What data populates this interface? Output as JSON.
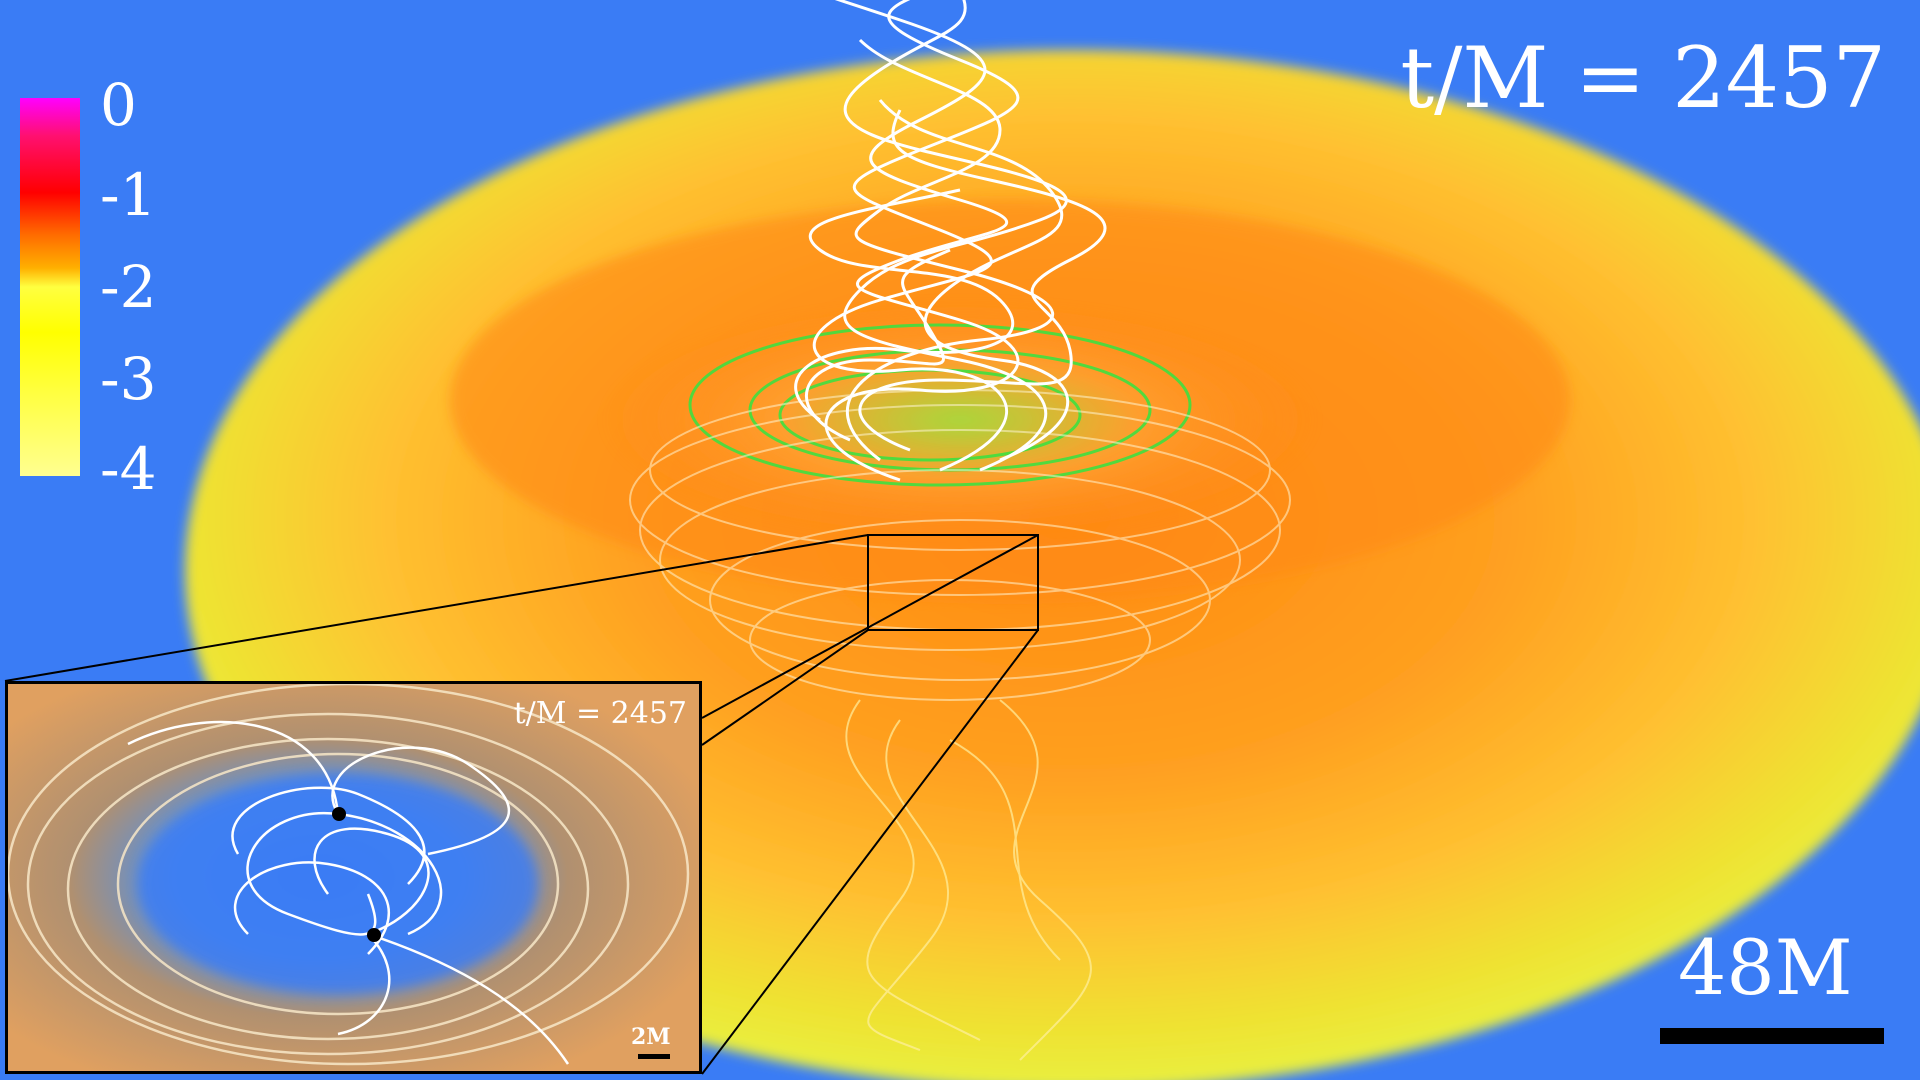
{
  "time_label": "t/M = 2457",
  "colorbar": {
    "ticks": [
      "0",
      "-1",
      "-2",
      "-3",
      "-4"
    ]
  },
  "scale_bar": {
    "label": "48M"
  },
  "inset": {
    "time_label": "t/M = 2457",
    "scale_label": "2M"
  }
}
